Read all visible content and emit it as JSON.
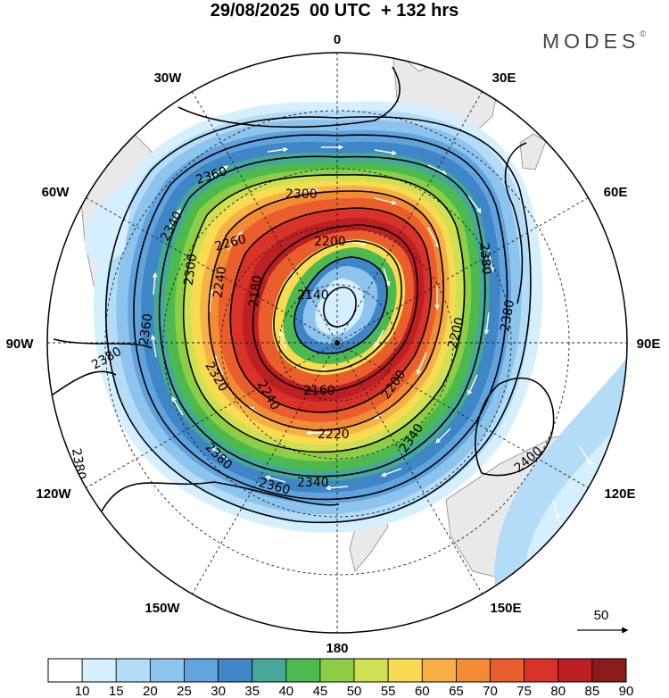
{
  "header": {
    "title": "29/08/2025  00 UTC  + 132 hrs",
    "brand": "MODES",
    "brand_mark": "©"
  },
  "map": {
    "projection": "polar-stereographic-south",
    "longitude_labels": {
      "top": "0",
      "top_right": "30E",
      "upper_right": "60E",
      "right": "90E",
      "lower_right": "120E",
      "bottom_right": "150E",
      "bottom": "180",
      "bottom_left": "150W",
      "lower_left": "120W",
      "left": "90W",
      "upper_left": "60W",
      "top_left": "30W"
    },
    "contour_labels": {
      "c2140": "2140",
      "c2160": "2160",
      "c2180": "2180",
      "c2200a": "2200",
      "c2200b": "2200",
      "c2220": "2220",
      "c2240a": "2240",
      "c2240b": "2240",
      "c2260": "2260",
      "c2300a": "2300",
      "c2300b": "2300",
      "c2320": "2320",
      "c2340a": "2340",
      "c2340b": "2340",
      "c2340c": "2340",
      "c2360a": "2360",
      "c2360b": "2360",
      "c2360c": "2360",
      "c2380a": "2380",
      "c2380b": "2380",
      "c2380c": "2380",
      "c2380d": "2380",
      "c2380e": "2380",
      "c2400": "2400",
      "c2200c": "2200"
    },
    "reference_vector": "50",
    "colors": {
      "c10": "#ffffff",
      "c15": "#d4efff",
      "c20": "#b3dcf7",
      "c25": "#8cc4ee",
      "c30": "#61a3dc",
      "c35": "#3f86c7",
      "c40": "#45a89a",
      "c45": "#4dba4f",
      "c50": "#8ccf45",
      "c55": "#cfe052",
      "c60": "#f8db50",
      "c65": "#f8b045",
      "c70": "#f38a34",
      "c75": "#ea5d2c",
      "c80": "#d93228",
      "c85": "#bd1f23",
      "c90": "#8b1a1a"
    }
  },
  "colorbar": {
    "ticks": [
      "10",
      "15",
      "20",
      "25",
      "30",
      "35",
      "40",
      "45",
      "50",
      "55",
      "60",
      "65",
      "70",
      "75",
      "80",
      "85",
      "90"
    ],
    "colors": [
      "#ffffff",
      "#d4efff",
      "#b3dcf7",
      "#8cc4ee",
      "#61a3dc",
      "#3f86c7",
      "#45a89a",
      "#4dba4f",
      "#8ccf45",
      "#cfe052",
      "#f8db50",
      "#f8b045",
      "#f38a34",
      "#ea5d2c",
      "#d93228",
      "#bd1f23",
      "#8b1a1a"
    ]
  }
}
